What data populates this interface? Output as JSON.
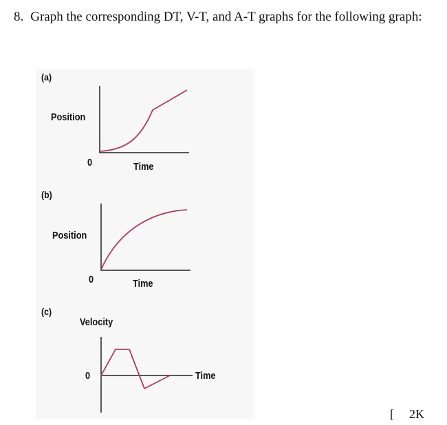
{
  "question": {
    "number": "8.",
    "text": "Graph the corresponding DT, V-T, and A-T graphs for the following graph:"
  },
  "graphs": [
    {
      "id": "a",
      "label": "(a)",
      "y_axis": "Position",
      "origin": "0",
      "x_axis": "Time"
    },
    {
      "id": "b",
      "label": "(b)",
      "y_axis": "Position",
      "origin": "0",
      "x_axis": "Time"
    },
    {
      "id": "c",
      "label": "(c)",
      "y_axis": "Velocity",
      "origin": "0",
      "x_axis": "Time"
    }
  ],
  "marks": {
    "open": "[",
    "value": "2K"
  },
  "colors": {
    "curve": "#b23a5a",
    "axis": "#222222",
    "figure_bg": "#f7f7f7"
  }
}
